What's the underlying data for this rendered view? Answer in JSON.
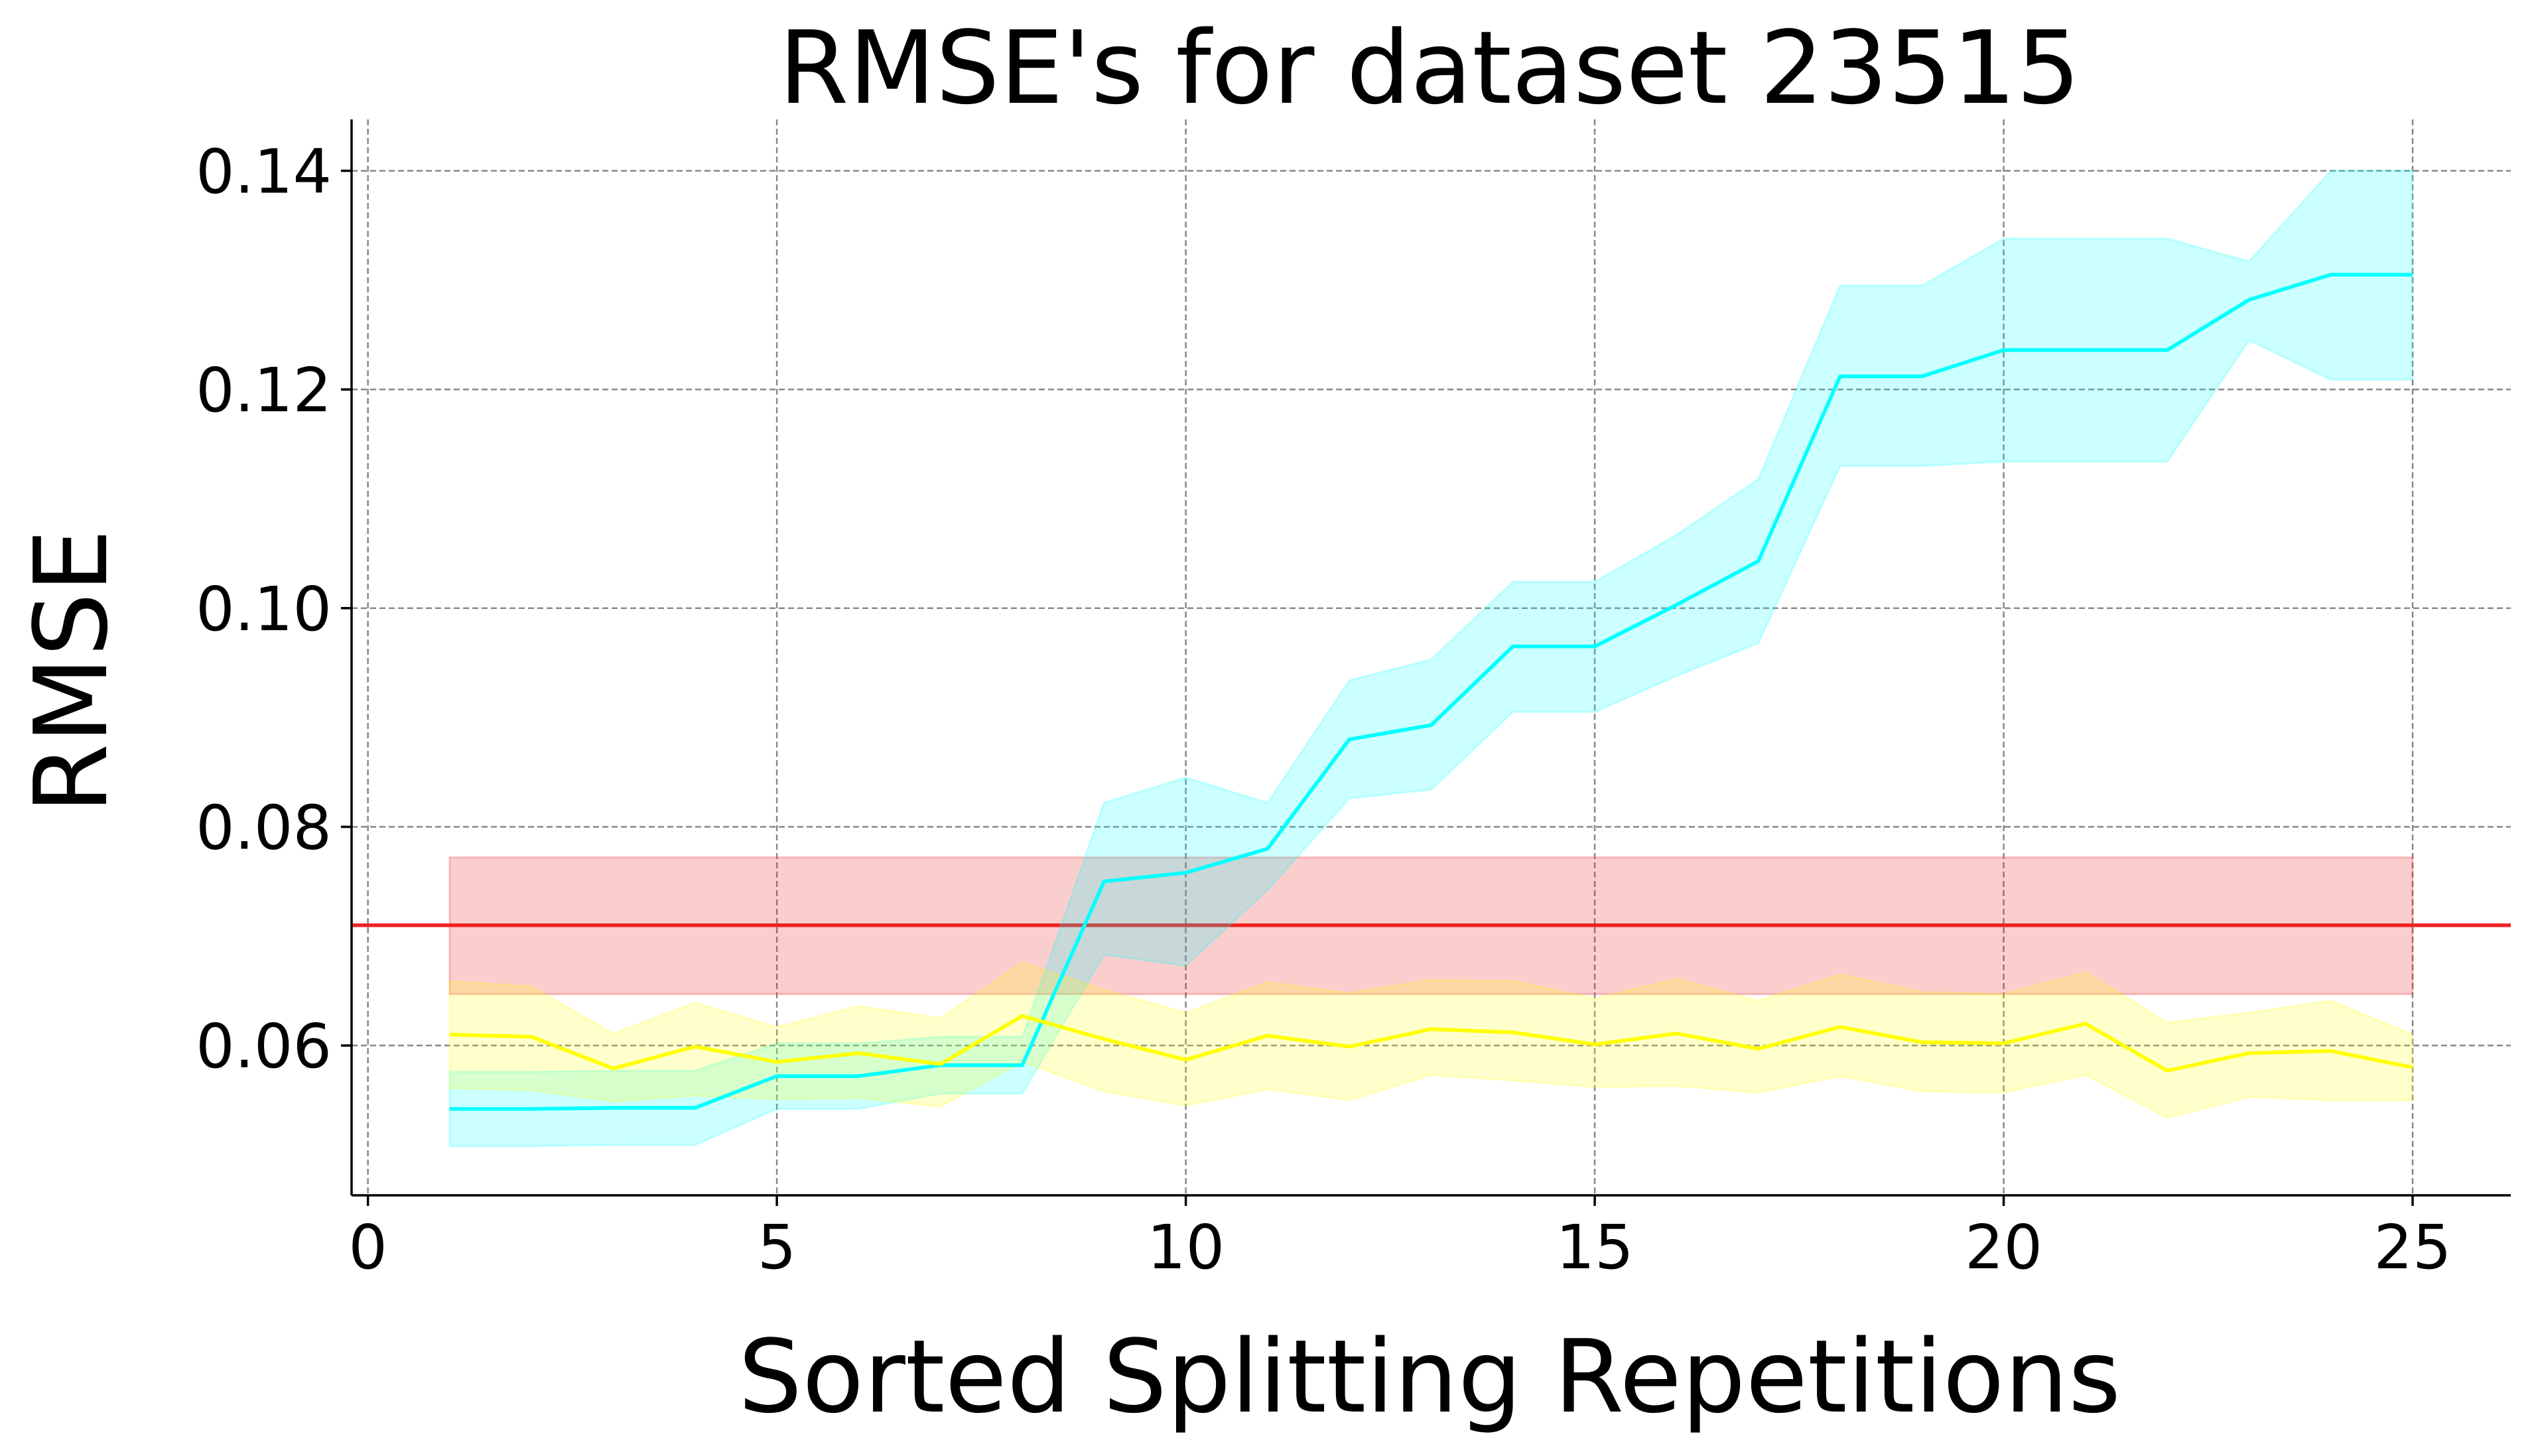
{
  "chart_data": {
    "type": "line",
    "title": "RMSE's for dataset 23515",
    "xlabel": "Sorted Splitting Repetitions",
    "ylabel": "RMSE",
    "xlim": [
      -0.2,
      26.2
    ],
    "ylim": [
      0.0463,
      0.1447
    ],
    "xticks": [
      0,
      5,
      10,
      15,
      20,
      25
    ],
    "xtick_labels": [
      "0",
      "5",
      "10",
      "15",
      "20",
      "25"
    ],
    "yticks": [
      0.06,
      0.08,
      0.1,
      0.12,
      0.14
    ],
    "ytick_labels": [
      "0.06",
      "0.08",
      "0.10",
      "0.12",
      "0.14"
    ],
    "grid": true,
    "x": [
      1,
      2,
      3,
      4,
      5,
      6,
      7,
      8,
      9,
      10,
      11,
      12,
      13,
      14,
      15,
      16,
      17,
      18,
      19,
      20,
      21,
      22,
      23,
      24,
      25
    ],
    "series": [
      {
        "color": "#00ffff",
        "values": [
          0.0542,
          0.0542,
          0.0543,
          0.0543,
          0.0572,
          0.0572,
          0.0582,
          0.0582,
          0.075,
          0.0758,
          0.078,
          0.088,
          0.0893,
          0.0965,
          0.0965,
          0.1003,
          0.1043,
          0.1212,
          0.1212,
          0.1236,
          0.1236,
          0.1236,
          0.1282,
          0.1305,
          0.1305
        ],
        "lower": [
          0.0508,
          0.0508,
          0.0509,
          0.0509,
          0.0542,
          0.0542,
          0.0556,
          0.0556,
          0.0683,
          0.0673,
          0.0742,
          0.0826,
          0.0834,
          0.0905,
          0.0905,
          0.0938,
          0.0968,
          0.113,
          0.113,
          0.1134,
          0.1134,
          0.1134,
          0.1245,
          0.1209,
          0.1209
        ],
        "upper": [
          0.0576,
          0.0576,
          0.0577,
          0.0577,
          0.0602,
          0.0602,
          0.0608,
          0.0608,
          0.0822,
          0.0845,
          0.0822,
          0.0934,
          0.0953,
          0.1024,
          0.1024,
          0.1067,
          0.1118,
          0.1295,
          0.1295,
          0.1338,
          0.1338,
          0.1338,
          0.1317,
          0.14,
          0.14
        ]
      },
      {
        "color": "#ffff00",
        "values": [
          0.061,
          0.0608,
          0.0579,
          0.0599,
          0.0585,
          0.0593,
          0.0583,
          0.0627,
          0.0606,
          0.0587,
          0.0609,
          0.0599,
          0.0615,
          0.0612,
          0.0601,
          0.0611,
          0.0597,
          0.0617,
          0.0603,
          0.0602,
          0.062,
          0.0577,
          0.0593,
          0.0595,
          0.058
        ],
        "lower": [
          0.0561,
          0.0559,
          0.0549,
          0.0554,
          0.0551,
          0.0552,
          0.0544,
          0.0585,
          0.0558,
          0.0545,
          0.056,
          0.055,
          0.0573,
          0.0568,
          0.0562,
          0.0563,
          0.0557,
          0.0572,
          0.0558,
          0.0557,
          0.0573,
          0.0534,
          0.0553,
          0.055,
          0.055
        ],
        "upper": [
          0.0659,
          0.0654,
          0.0611,
          0.0639,
          0.0617,
          0.0636,
          0.0625,
          0.0676,
          0.0651,
          0.063,
          0.0658,
          0.0648,
          0.066,
          0.0659,
          0.0643,
          0.0661,
          0.0641,
          0.0665,
          0.0649,
          0.0647,
          0.0667,
          0.0621,
          0.063,
          0.0641,
          0.061
        ]
      }
    ],
    "reference": {
      "color": "#ee2222",
      "value": 0.071,
      "lower": 0.0647,
      "upper": 0.0772,
      "band_x": [
        1,
        25
      ]
    }
  }
}
